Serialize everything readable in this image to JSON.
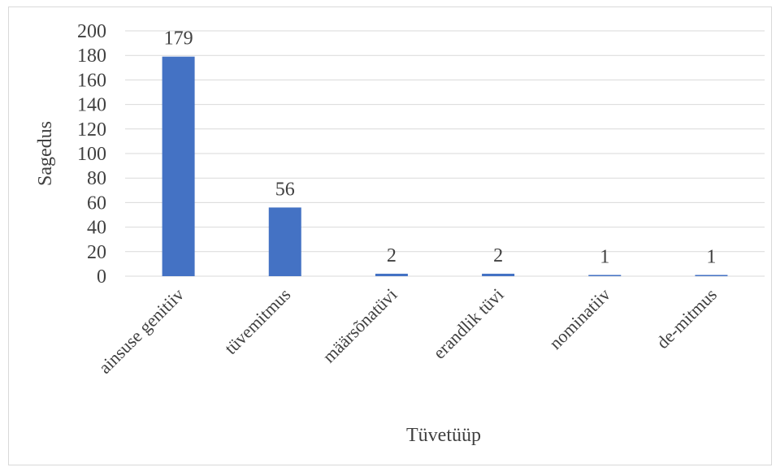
{
  "chart_data": {
    "type": "bar",
    "categories": [
      "ainsuse genitiiv",
      "tüvemitmus",
      "määrsõnatüvi",
      "erandlik tüvi",
      "nominatiiv",
      "de-mitmus"
    ],
    "values": [
      179,
      56,
      2,
      2,
      1,
      1
    ],
    "data_labels": [
      "179",
      "56",
      "2",
      "2",
      "1",
      "1"
    ],
    "xlabel": "Tüvetüüp",
    "ylabel": "Sagedus",
    "ylim": [
      0,
      200
    ],
    "yticks": [
      0,
      20,
      40,
      60,
      80,
      100,
      120,
      140,
      160,
      180,
      200
    ],
    "grid": true,
    "legend": "none",
    "colors": {
      "bar": "#4472c4",
      "grid": "#d9d9d9",
      "text": "#404040"
    }
  }
}
